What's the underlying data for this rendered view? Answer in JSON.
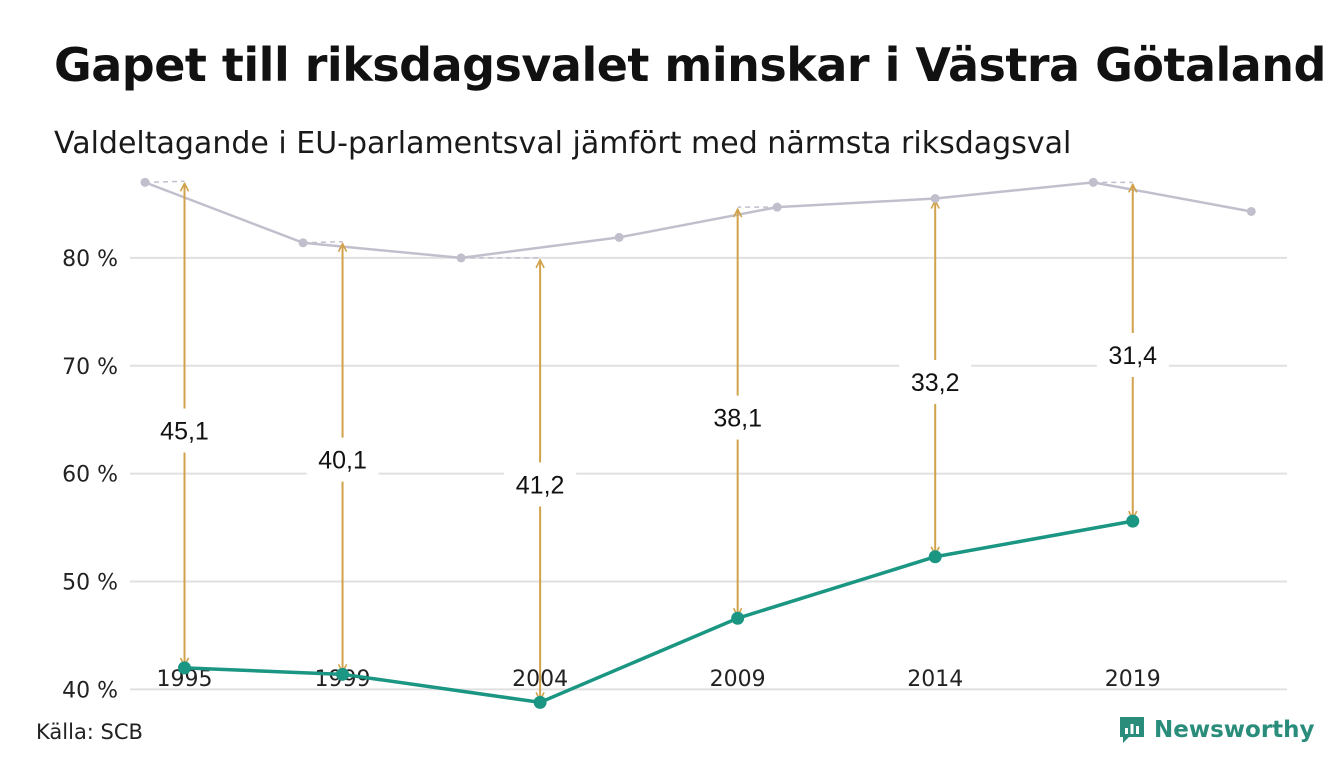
{
  "title": "Gapet till riksdagsvalet minskar i Västra Götaland",
  "subtitle": "Valdeltagande i EU-parlamentsval jämfört med närmsta riksdagsval",
  "source": "Källa: SCB",
  "brand": {
    "name": "Newsworthy",
    "icon": "newsworthy-logo-icon"
  },
  "colors": {
    "eu_line": "#1a9683",
    "riksdag_line": "#c2bfcc",
    "gap_arrow": "#d1a24b",
    "grid": "#e0e0e0",
    "brand": "#2a8c7a"
  },
  "chart_data": {
    "type": "line",
    "x_ticks": [
      "1995",
      "1999",
      "2004",
      "2009",
      "2014",
      "2019"
    ],
    "y_ticks": [
      "40 %",
      "50 %",
      "60 %",
      "70 %",
      "80 %"
    ],
    "ylim": [
      38,
      90
    ],
    "xlim": [
      1994.0,
      2022.6
    ],
    "grid": true,
    "series": [
      {
        "key": "riksdag",
        "points": [
          {
            "x": 1994.0,
            "y": 87.0
          },
          {
            "x": 1998.0,
            "y": 81.4
          },
          {
            "x": 2002.0,
            "y": 80.0
          },
          {
            "x": 2006.0,
            "y": 81.9
          },
          {
            "x": 2010.0,
            "y": 84.7
          },
          {
            "x": 2014.0,
            "y": 85.5
          },
          {
            "x": 2018.0,
            "y": 87.0
          },
          {
            "x": 2022.0,
            "y": 84.3
          }
        ]
      },
      {
        "key": "eu",
        "points": [
          {
            "x": 1995.0,
            "y": 42.0
          },
          {
            "x": 1999.0,
            "y": 41.4
          },
          {
            "x": 2004.0,
            "y": 38.8
          },
          {
            "x": 2009.0,
            "y": 46.6
          },
          {
            "x": 2014.0,
            "y": 52.3
          },
          {
            "x": 2019.0,
            "y": 55.6
          }
        ]
      }
    ],
    "gaps": [
      {
        "x": 1995.0,
        "from": 42.0,
        "to": 87.1,
        "label": "45,1"
      },
      {
        "x": 1999.0,
        "from": 41.4,
        "to": 81.5,
        "label": "40,1"
      },
      {
        "x": 2004.0,
        "from": 38.8,
        "to": 80.0,
        "label": "41,2"
      },
      {
        "x": 2009.0,
        "from": 46.6,
        "to": 84.7,
        "label": "38,1"
      },
      {
        "x": 2014.0,
        "from": 52.3,
        "to": 85.5,
        "label": "33,2"
      },
      {
        "x": 2019.0,
        "from": 55.6,
        "to": 87.0,
        "label": "31,4"
      }
    ],
    "gap_label_y": [
      64.0,
      61.3,
      59.0,
      65.2,
      68.5,
      71.0
    ]
  }
}
